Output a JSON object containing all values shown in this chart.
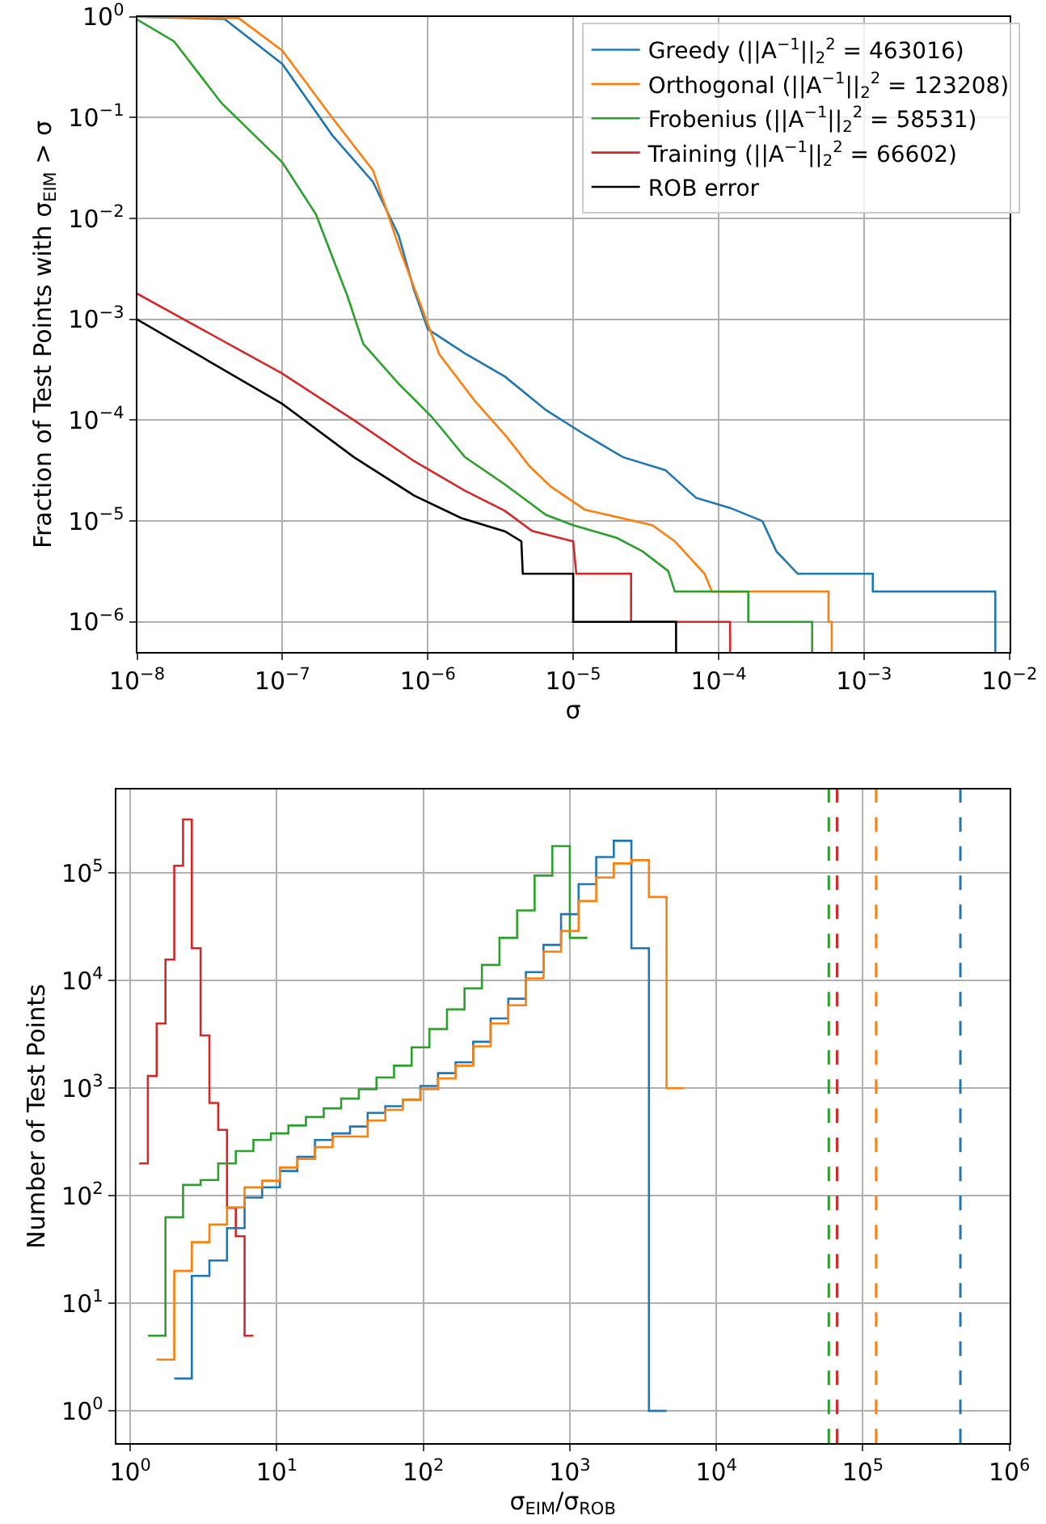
{
  "chart_data": [
    {
      "type": "line",
      "xlabel": "σ",
      "ylabel": "Fraction of Test Points with σ$_{EIM}$ > σ",
      "log": "xy",
      "grid": true,
      "legend": "top right",
      "xlim": [
        1e-08,
        0.01
      ],
      "ylim": [
        5e-07,
        1
      ],
      "xticks": [
        {
          "value": 1e-08,
          "label": "10$^{−8}$"
        },
        {
          "value": 1e-07,
          "label": "10$^{−7}$"
        },
        {
          "value": 1e-06,
          "label": "10$^{−6}$"
        },
        {
          "value": 1e-05,
          "label": "10$^{−5}$"
        },
        {
          "value": 0.0001,
          "label": "10$^{−4}$"
        },
        {
          "value": 0.001,
          "label": "10$^{−3}$"
        },
        {
          "value": 0.01,
          "label": "10$^{−2}$"
        }
      ],
      "yticks": [
        {
          "value": 1e-06,
          "label": "10$^{−6}$"
        },
        {
          "value": 1e-05,
          "label": "10$^{−5}$"
        },
        {
          "value": 0.0001,
          "label": "10$^{−4}$"
        },
        {
          "value": 0.001,
          "label": "10$^{−3}$"
        },
        {
          "value": 0.01,
          "label": "10$^{−2}$"
        },
        {
          "value": 0.1,
          "label": "10$^{−1}$"
        },
        {
          "value": 1,
          "label": "10$^{0}$"
        }
      ],
      "series": [
        {
          "name": "Greedy (||A$^{−1}$||$_{2}$$^{2}$ = 463016)",
          "color": "#1f77b4",
          "x": [
            1e-08,
            4e-08,
            1e-07,
            2.2e-07,
            4.2e-07,
            6.3e-07,
            8e-07,
            1e-06,
            1.8e-06,
            3.4e-06,
            6.5e-06,
            1.2e-05,
            2.2e-05,
            4.3e-05,
            7e-05,
            0.00012,
            0.0002,
            0.00025,
            0.00035,
            0.00115,
            0.00115,
            0.008,
            0.008
          ],
          "values": [
            1.0,
            0.95,
            0.34,
            0.067,
            0.023,
            0.0068,
            0.002,
            0.0008,
            0.00046,
            0.00027,
            0.000126,
            7.2e-05,
            4.3e-05,
            3.2e-05,
            1.7e-05,
            1.35e-05,
            1e-05,
            5e-06,
            3e-06,
            3e-06,
            2e-06,
            2e-06,
            5e-07
          ]
        },
        {
          "name": "Orthogonal (||A$^{−1}$||$_{2}$$^{2}$ = 123208)",
          "color": "#ff7f0e",
          "x": [
            1e-08,
            5e-08,
            1e-07,
            2.2e-07,
            4.2e-07,
            6.5e-07,
            1e-06,
            1.2e-06,
            2.1e-06,
            3.5e-06,
            5e-06,
            7e-06,
            1.2e-05,
            3.5e-05,
            5e-05,
            8e-05,
            9e-05,
            0.00057,
            0.00057,
            0.0006,
            0.0006
          ],
          "values": [
            1.0,
            0.97,
            0.46,
            0.1,
            0.03,
            0.0047,
            0.0009,
            0.00045,
            0.000156,
            6.8e-05,
            3.5e-05,
            2.2e-05,
            1.3e-05,
            9.1e-06,
            6.3e-06,
            3e-06,
            2e-06,
            2e-06,
            1e-06,
            1e-06,
            5e-07
          ]
        },
        {
          "name": "Frobenius (||A$^{−1}$||$_{2}$$^{2}$ = 58531)",
          "color": "#2ca02c",
          "x": [
            1e-08,
            1.8e-08,
            3.8e-08,
            1e-07,
            1.7e-07,
            2.8e-07,
            3.6e-07,
            6.3e-07,
            1.07e-06,
            1.8e-06,
            3.4e-06,
            6.5e-06,
            1e-05,
            2e-05,
            3e-05,
            4.5e-05,
            5e-05,
            0.00016,
            0.00016,
            0.00044,
            0.00044
          ],
          "values": [
            0.94,
            0.57,
            0.14,
            0.036,
            0.011,
            0.0017,
            0.00057,
            0.00023,
            0.000107,
            4.3e-05,
            2.3e-05,
            1.15e-05,
            9.1e-06,
            6.8e-06,
            5e-06,
            3.2e-06,
            2e-06,
            2e-06,
            1e-06,
            1e-06,
            5e-07
          ]
        },
        {
          "name": "Training (||A$^{−1}$||$_{2}$$^{2}$ = 66602)",
          "color": "#d62728",
          "x": [
            1e-08,
            1e-07,
            3.1e-07,
            7.9e-07,
            1.8e-06,
            3.4e-06,
            5.2e-06,
            1e-05,
            1.05e-05,
            2.5e-05,
            2.5e-05,
            0.00012,
            0.00012
          ],
          "values": [
            0.0018,
            0.00029,
            0.0001,
            4e-05,
            2e-05,
            1.26e-05,
            8e-06,
            6.3e-06,
            3e-06,
            3e-06,
            1e-06,
            1e-06,
            5e-07
          ]
        },
        {
          "name": "ROB error",
          "color": "#000000",
          "x": [
            1e-08,
            1e-07,
            3.1e-07,
            8e-07,
            1.7e-06,
            3.4e-06,
            4.4e-06,
            4.5e-06,
            1e-05,
            1e-05,
            5.1e-05,
            5.1e-05
          ],
          "values": [
            0.001,
            0.000145,
            4.3e-05,
            1.8e-05,
            1.07e-05,
            7.9e-06,
            6.3e-06,
            3e-06,
            3e-06,
            1e-06,
            1e-06,
            5e-07
          ]
        }
      ]
    },
    {
      "type": "step",
      "xlabel": "σ$_{EIM}$/σ$_{ROB}$",
      "ylabel": "Number of Test Points",
      "log": "xy",
      "grid": true,
      "legend": false,
      "xlim": [
        0.8,
        1000000
      ],
      "ylim": [
        0.5,
        600000
      ],
      "xticks": [
        {
          "value": 1,
          "label": "10$^{0}$"
        },
        {
          "value": 10,
          "label": "10$^{1}$"
        },
        {
          "value": 100,
          "label": "10$^{2}$"
        },
        {
          "value": 1000,
          "label": "10$^{3}$"
        },
        {
          "value": 10000,
          "label": "10$^{4}$"
        },
        {
          "value": 100000,
          "label": "10$^{5}$"
        },
        {
          "value": 1000000,
          "label": "10$^{6}$"
        }
      ],
      "yticks": [
        {
          "value": 1,
          "label": "10$^{0}$"
        },
        {
          "value": 10,
          "label": "10$^{1}$"
        },
        {
          "value": 100,
          "label": "10$^{2}$"
        },
        {
          "value": 1000,
          "label": "10$^{3}$"
        },
        {
          "value": 10000,
          "label": "10$^{4}$"
        },
        {
          "value": 100000,
          "label": "10$^{5}$"
        }
      ],
      "series": [
        {
          "color": "#d62728",
          "x": [
            1.148,
            1.318,
            1.514,
            1.738,
            1.995,
            2.291,
            2.63,
            3.02,
            3.467,
            3.981,
            4.571,
            5.248,
            6.026,
            6.918
          ],
          "values": [
            200,
            1300,
            4000,
            15700,
            117000,
            316000,
            20000,
            3100,
            730,
            410,
            77,
            42,
            5,
            5
          ]
        },
        {
          "color": "#2ca02c",
          "x": [
            1.318,
            1.738,
            2.291,
            3.02,
            3.981,
            5.248,
            6.918,
            9.12,
            12.0,
            15.8,
            20.9,
            27.5,
            36.3,
            47.9,
            63.1,
            83.2,
            110,
            145,
            191,
            251,
            331,
            437,
            575,
            759,
            1000,
            1318
          ],
          "values": [
            5,
            63,
            126,
            140,
            200,
            260,
            330,
            380,
            450,
            540,
            650,
            800,
            980,
            1260,
            1620,
            2400,
            3550,
            5400,
            8500,
            14000,
            25000,
            45000,
            95000,
            178000,
            25000,
            25000
          ]
        },
        {
          "color": "#1f77b4",
          "x": [
            1.995,
            2.63,
            3.467,
            4.571,
            6.026,
            7.943,
            10.5,
            13.8,
            18.2,
            24.0,
            31.6,
            41.7,
            55.0,
            72.4,
            95.5,
            126,
            166,
            219,
            288,
            380,
            501,
            661,
            871,
            1148,
            1514,
            1995,
            2630,
            3467,
            4571
          ],
          "values": [
            2,
            18,
            25,
            50,
            96,
            120,
            170,
            230,
            330,
            380,
            440,
            590,
            680,
            780,
            1050,
            1380,
            1740,
            2700,
            4450,
            6800,
            12000,
            21500,
            41500,
            79000,
            141000,
            200000,
            20000,
            1,
            1
          ]
        },
        {
          "color": "#ff7f0e",
          "x": [
            1.514,
            1.995,
            2.63,
            3.467,
            4.571,
            6.026,
            7.943,
            10.5,
            13.8,
            18.2,
            24.0,
            31.6,
            41.7,
            55.0,
            72.4,
            95.5,
            126,
            166,
            219,
            288,
            380,
            501,
            661,
            871,
            1148,
            1514,
            1995,
            2630,
            3467,
            4571,
            6026
          ],
          "values": [
            3,
            20,
            37,
            54,
            78,
            120,
            138,
            183,
            220,
            283,
            355,
            355,
            500,
            630,
            780,
            980,
            1230,
            1620,
            2450,
            4000,
            5900,
            10500,
            18600,
            29000,
            55000,
            91000,
            123000,
            132000,
            60000,
            1000,
            1000
          ]
        }
      ],
      "ref_lines": [
        {
          "axis": "x",
          "value": 58531,
          "color": "#2ca02c",
          "line_style": "dashed"
        },
        {
          "axis": "x",
          "value": 66602,
          "color": "#d62728",
          "line_style": "dashed"
        },
        {
          "axis": "x",
          "value": 123208,
          "color": "#ff7f0e",
          "line_style": "dashed"
        },
        {
          "axis": "x",
          "value": 463016,
          "color": "#1f77b4",
          "line_style": "dashed"
        }
      ]
    }
  ]
}
